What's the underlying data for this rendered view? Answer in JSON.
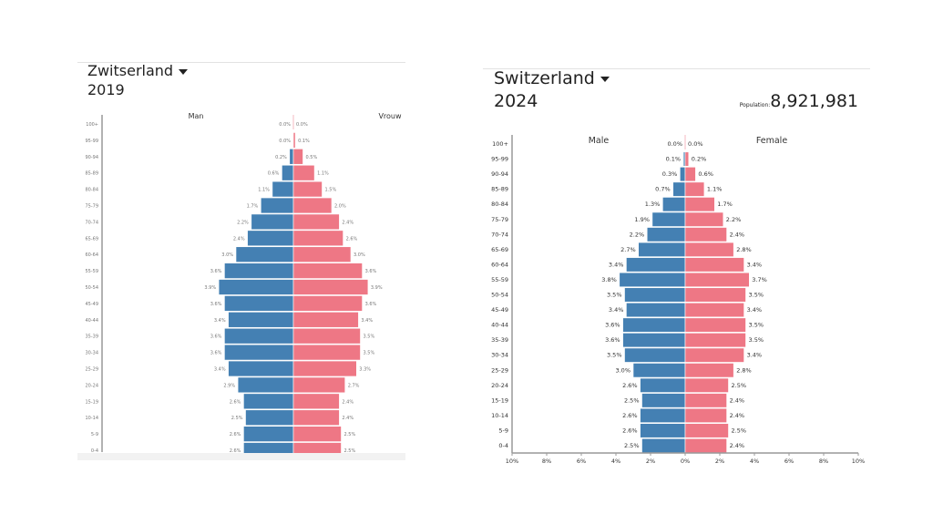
{
  "chart_data": [
    {
      "type": "bar",
      "subtype": "population-pyramid",
      "country": "Zwitserland",
      "year": "2019",
      "left_label": "Man",
      "right_label": "Vrouw",
      "categories": [
        "100+",
        "95-99",
        "90-94",
        "85-89",
        "80-84",
        "75-79",
        "70-74",
        "65-69",
        "60-64",
        "55-59",
        "50-54",
        "45-49",
        "40-44",
        "35-39",
        "30-34",
        "25-29",
        "20-24",
        "15-19",
        "10-14",
        "5-9",
        "0-4"
      ],
      "series": [
        {
          "name": "Man",
          "values": [
            0.0,
            0.0,
            0.2,
            0.6,
            1.1,
            1.7,
            2.2,
            2.4,
            3.0,
            3.6,
            3.9,
            3.6,
            3.4,
            3.6,
            3.6,
            3.4,
            2.9,
            2.6,
            2.5,
            2.6,
            2.6
          ],
          "color": "#4480b3"
        },
        {
          "name": "Vrouw",
          "values": [
            0.0,
            0.1,
            0.5,
            1.1,
            1.5,
            2.0,
            2.4,
            2.6,
            3.0,
            3.6,
            3.9,
            3.6,
            3.4,
            3.5,
            3.5,
            3.3,
            2.7,
            2.4,
            2.4,
            2.5,
            2.5
          ],
          "color": "#ee7785"
        }
      ],
      "unit": "%",
      "xlim": [
        -10,
        10
      ]
    },
    {
      "type": "bar",
      "subtype": "population-pyramid",
      "country": "Switzerland",
      "year": "2024",
      "population_label": "Population:",
      "population": "8,921,981",
      "left_label": "Male",
      "right_label": "Female",
      "categories": [
        "100+",
        "95-99",
        "90-94",
        "85-89",
        "80-84",
        "75-79",
        "70-74",
        "65-69",
        "60-64",
        "55-59",
        "50-54",
        "45-49",
        "40-44",
        "35-39",
        "30-34",
        "25-29",
        "20-24",
        "15-19",
        "10-14",
        "5-9",
        "0-4"
      ],
      "series": [
        {
          "name": "Male",
          "values": [
            0.0,
            0.1,
            0.3,
            0.7,
            1.3,
            1.9,
            2.2,
            2.7,
            3.4,
            3.8,
            3.5,
            3.4,
            3.6,
            3.6,
            3.5,
            3.0,
            2.6,
            2.5,
            2.6,
            2.6,
            2.5
          ],
          "color": "#4480b3"
        },
        {
          "name": "Female",
          "values": [
            0.0,
            0.2,
            0.6,
            1.1,
            1.7,
            2.2,
            2.4,
            2.8,
            3.4,
            3.7,
            3.5,
            3.4,
            3.5,
            3.5,
            3.4,
            2.8,
            2.5,
            2.4,
            2.4,
            2.5,
            2.4
          ],
          "color": "#ee7785"
        }
      ],
      "unit": "%",
      "xlim": [
        -10,
        10
      ],
      "xticks": [
        "10%",
        "8%",
        "6%",
        "4%",
        "2%",
        "0%",
        "2%",
        "4%",
        "6%",
        "8%",
        "10%"
      ]
    }
  ]
}
